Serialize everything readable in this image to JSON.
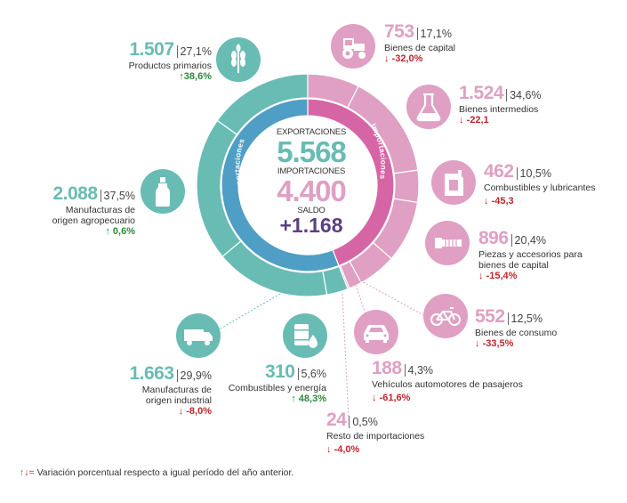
{
  "colors": {
    "exports": "#68bcb4",
    "exports_dark": "#4f9ec5",
    "imports": "#dfa0c3",
    "imports_dark": "#d665a6",
    "up": "#2a8a3e",
    "down": "#c0262c",
    "saldo": "#5c3f83"
  },
  "center": {
    "exports_caption": "EXPORTACIONES",
    "exports_value": "5.568",
    "imports_caption": "IMPORTACIONES",
    "imports_value": "4.400",
    "saldo_caption": "SALDO",
    "saldo_value": "+1.168",
    "ring_left_label": "Exportaciones",
    "ring_right_label": "Importaciones"
  },
  "chart_data": {
    "type": "pie",
    "series": [
      {
        "name": "Exportaciones",
        "total": 5568,
        "categories": [
          {
            "name": "Productos primarios",
            "value": 1507,
            "share": 27.1,
            "variation": 38.6,
            "direction": "up",
            "value_label": "1.507",
            "share_label": "27,1%",
            "variation_label": "38,6%",
            "icon": "wheat-icon"
          },
          {
            "name": "Manufacturas de origen agropecuario",
            "value": 2088,
            "share": 37.5,
            "variation": 0.6,
            "direction": "up",
            "value_label": "2.088",
            "share_label": "37,5%",
            "variation_label": "0,6%",
            "icon": "bottle-icon"
          },
          {
            "name": "Manufacturas de origen industrial",
            "value": 1663,
            "share": 29.9,
            "variation": -8.0,
            "direction": "down",
            "value_label": "1.663",
            "share_label": "29,9%",
            "variation_label": "-8,0%",
            "icon": "truck-icon"
          },
          {
            "name": "Combustibles y energía",
            "value": 310,
            "share": 5.6,
            "variation": 48.3,
            "direction": "up",
            "value_label": "310",
            "share_label": "5,6%",
            "variation_label": "48,3%",
            "icon": "oil-barrel-icon"
          }
        ]
      },
      {
        "name": "Importaciones",
        "total": 4400,
        "categories": [
          {
            "name": "Bienes de capital",
            "value": 753,
            "share": 17.1,
            "variation": -32.0,
            "direction": "down",
            "value_label": "753",
            "share_label": "17,1%",
            "variation_label": "-32,0%",
            "icon": "tractor-icon"
          },
          {
            "name": "Bienes intermedios",
            "value": 1524,
            "share": 34.6,
            "variation": -22.1,
            "direction": "down",
            "value_label": "1.524",
            "share_label": "34,6%",
            "variation_label": "-22,1",
            "icon": "flask-icon"
          },
          {
            "name": "Combustibles y lubricantes",
            "value": 462,
            "share": 10.5,
            "variation": -45.3,
            "direction": "down",
            "value_label": "462",
            "share_label": "10,5%",
            "variation_label": "-45,3",
            "icon": "jerrycan-icon"
          },
          {
            "name": "Piezas y accesorios para bienes de capital",
            "value": 896,
            "share": 20.4,
            "variation": -15.4,
            "direction": "down",
            "value_label": "896",
            "share_label": "20,4%",
            "variation_label": "-15,4%",
            "icon": "screw-icon"
          },
          {
            "name": "Bienes de consumo",
            "value": 552,
            "share": 12.5,
            "variation": -33.5,
            "direction": "down",
            "value_label": "552",
            "share_label": "12,5%",
            "variation_label": "-33,5%",
            "icon": "bicycle-icon"
          },
          {
            "name": "Vehículos automotores de pasajeros",
            "value": 188,
            "share": 4.3,
            "variation": -61.6,
            "direction": "down",
            "value_label": "188",
            "share_label": "4,3%",
            "variation_label": "-61,6%",
            "icon": "car-icon"
          },
          {
            "name": "Resto de importaciones",
            "value": 24,
            "share": 0.5,
            "variation": -4.0,
            "direction": "down",
            "value_label": "24",
            "share_label": "0,5%",
            "variation_label": "-4,0%",
            "icon": ""
          }
        ]
      }
    ]
  },
  "labels": {
    "prim_name": "Productos primarios",
    "moa_name_1": "Manufacturas de",
    "moa_name_2": "origen agropecuario",
    "moi_name_1": "Manufacturas de",
    "moi_name_2": "origen industrial",
    "comb_name": "Combustibles y energía",
    "bk_name": "Bienes de capital",
    "bi_name": "Bienes intermedios",
    "cl_name": "Combustibles y lubricantes",
    "pa_name_1": "Piezas y accesorios para",
    "pa_name_2": "bienes de capital",
    "bc_name": "Bienes de consumo",
    "va_name": "Vehículos automotores de pasajeros",
    "ri_name": "Resto de importaciones"
  },
  "footer": {
    "legend_up": "↑",
    "legend_down": "↓",
    "legend_eq": "=",
    "text": "Variación porcentual respecto a igual período del año anterior."
  }
}
